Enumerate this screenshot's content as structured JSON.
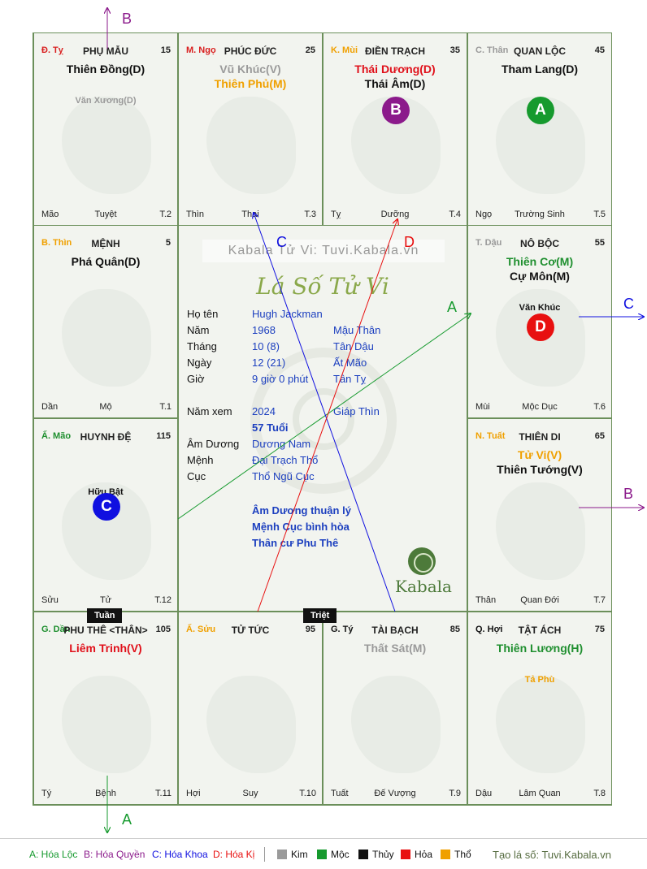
{
  "palaces": [
    {
      "stem": "Đ. Tỵ",
      "stem_color": "#d92020",
      "name": "PHỤ MẪU",
      "num": "15",
      "main": [
        {
          "t": "Thiên Đồng(D)",
          "c": "#111"
        }
      ],
      "minor": [
        {
          "t": "Văn Xương(D)",
          "c": "#9a9a9a"
        }
      ],
      "f1": "Mão",
      "f2": "Tuyệt",
      "f3": "T.2"
    },
    {
      "stem": "M. Ngọ",
      "stem_color": "#d92020",
      "name": "PHÚC ĐỨC",
      "num": "25",
      "main": [
        {
          "t": "Vũ Khúc(V)",
          "c": "#9a9a9a"
        },
        {
          "t": "Thiên Phủ(M)",
          "c": "#f0a000"
        }
      ],
      "minor": [],
      "f1": "Thìn",
      "f2": "Thai",
      "f3": "T.3"
    },
    {
      "stem": "K. Mùi",
      "stem_color": "#f0a000",
      "name": "ĐIỀN TRẠCH",
      "num": "35",
      "main": [
        {
          "t": "Thái Dương(D)",
          "c": "#e0101a"
        },
        {
          "t": "Thái Âm(D)",
          "c": "#111"
        }
      ],
      "minor": [],
      "circle": {
        "letter": "B",
        "color": "#8b1a8b"
      },
      "f1": "Tỵ",
      "f2": "Dưỡng",
      "f3": "T.4"
    },
    {
      "stem": "C. Thân",
      "stem_color": "#9a9a9a",
      "name": "QUAN LỘC",
      "num": "45",
      "main": [
        {
          "t": "Tham Lang(D)",
          "c": "#111"
        }
      ],
      "minor": [],
      "circle": {
        "letter": "A",
        "color": "#169a2e"
      },
      "f1": "Ngọ",
      "f2": "Trường Sinh",
      "f3": "T.5"
    },
    {
      "stem": "B. Thìn",
      "stem_color": "#f0a000",
      "name": "MỆNH",
      "num": "5",
      "main": [
        {
          "t": "Phá Quân(D)",
          "c": "#111"
        }
      ],
      "minor": [],
      "f1": "Dần",
      "f2": "Mộ",
      "f3": "T.1"
    },
    {
      "stem": "T. Dậu",
      "stem_color": "#9a9a9a",
      "name": "NÔ BỘC",
      "num": "55",
      "main": [
        {
          "t": "Thiên Cơ(M)",
          "c": "#1f8f2f"
        },
        {
          "t": "Cự Môn(M)",
          "c": "#111"
        }
      ],
      "minor": [
        {
          "t": "Văn Khúc",
          "c": "#111"
        }
      ],
      "circle": {
        "letter": "D",
        "color": "#e81010"
      },
      "f1": "Mùi",
      "f2": "Mộc Dục",
      "f3": "T.6"
    },
    {
      "stem": "Ấ. Mão",
      "stem_color": "#1f8f2f",
      "name": "HUYNH ĐỆ",
      "num": "115",
      "main": [],
      "minor": [
        {
          "t": "Hữu Bật",
          "c": "#111"
        }
      ],
      "circle": {
        "letter": "C",
        "color": "#1010e0"
      },
      "f1": "Sửu",
      "f2": "Tử",
      "f3": "T.12"
    },
    {
      "stem": "N. Tuất",
      "stem_color": "#f0a000",
      "name": "THIÊN DI",
      "num": "65",
      "main": [
        {
          "t": "Tử Vi(V)",
          "c": "#f0a000"
        },
        {
          "t": "Thiên Tướng(V)",
          "c": "#111"
        }
      ],
      "minor": [],
      "f1": "Thân",
      "f2": "Quan Đới",
      "f3": "T.7"
    },
    {
      "stem": "G. Dần",
      "stem_color": "#1f8f2f",
      "name": "PHU THÊ <THÂN>",
      "num": "105",
      "main": [
        {
          "t": "Liêm Trinh(V)",
          "c": "#e0101a"
        }
      ],
      "minor": [],
      "f1": "Tý",
      "f2": "Bệnh",
      "f3": "T.11"
    },
    {
      "stem": "Ấ. Sửu",
      "stem_color": "#f0a000",
      "name": "TỬ TỨC",
      "num": "95",
      "main": [],
      "minor": [],
      "f1": "Hợi",
      "f2": "Suy",
      "f3": "T.10"
    },
    {
      "stem": "G. Tý",
      "stem_color": "#111",
      "name": "TÀI BẠCH",
      "num": "85",
      "main": [
        {
          "t": "Thất Sát(M)",
          "c": "#9a9a9a"
        }
      ],
      "minor": [],
      "f1": "Tuất",
      "f2": "Đế Vượng",
      "f3": "T.9"
    },
    {
      "stem": "Q. Hợi",
      "stem_color": "#111",
      "name": "TẬT ÁCH",
      "num": "75",
      "main": [
        {
          "t": "Thiên Lương(H)",
          "c": "#1f8f2f"
        }
      ],
      "minor": [
        {
          "t": "Tả Phù",
          "c": "#f0a000"
        }
      ],
      "f1": "Dậu",
      "f2": "Lâm Quan",
      "f3": "T.8"
    }
  ],
  "center": {
    "watermark": "Kabala Tử Vi: Tuvi.Kabala.vn",
    "title": "Lá Số Tử Vi",
    "rows": [
      {
        "label": "Họ tên",
        "v1": "Hugh Jackman",
        "v2": ""
      },
      {
        "label": "Năm",
        "v1": "1968",
        "v2": "Mậu Thân"
      },
      {
        "label": "Tháng",
        "v1": "10  (8)",
        "v2": "Tân Dậu"
      },
      {
        "label": "Ngày",
        "v1": "12  (21)",
        "v2": "Ất Mão"
      },
      {
        "label": "Giờ",
        "v1": "9 giờ 0 phút",
        "v2": "Tân Tỵ"
      },
      {
        "label": "Năm xem",
        "v1": "2024",
        "v2": "Giáp Thìn"
      },
      {
        "label": "",
        "v1": "57 Tuổi",
        "v2": ""
      },
      {
        "label": "Âm Dương",
        "v1": "Dương Nam",
        "v2": ""
      },
      {
        "label": "Mệnh",
        "v1": "Đại Trạch Thổ",
        "v2": ""
      },
      {
        "label": "Cục",
        "v1": "Thổ Ngũ Cục",
        "v2": ""
      }
    ],
    "notes": [
      "Âm Dương thuận lý",
      "Mệnh Cục bình hòa",
      "Thân cư Phu Thê"
    ],
    "brand": "Kabala"
  },
  "tags": {
    "tuan": "Tuần",
    "triet": "Triệt"
  },
  "arrows": {
    "a": "A",
    "b": "B",
    "c": "C",
    "d": "D"
  },
  "legend": {
    "a": "A: Hóa Lộc",
    "b": "B: Hóa Quyền",
    "c": "C: Hóa Khoa",
    "d": "D: Hóa Kị",
    "kim": "Kim",
    "moc": "Mộc",
    "thuy": "Thủy",
    "hoa": "Hỏa",
    "tho": "Thổ",
    "site": "Tạo lá số: Tuvi.Kabala.vn",
    "colors": {
      "kim": "#9a9a9a",
      "moc": "#169a2e",
      "thuy": "#111111",
      "hoa": "#e81010",
      "tho": "#f0a000"
    }
  }
}
